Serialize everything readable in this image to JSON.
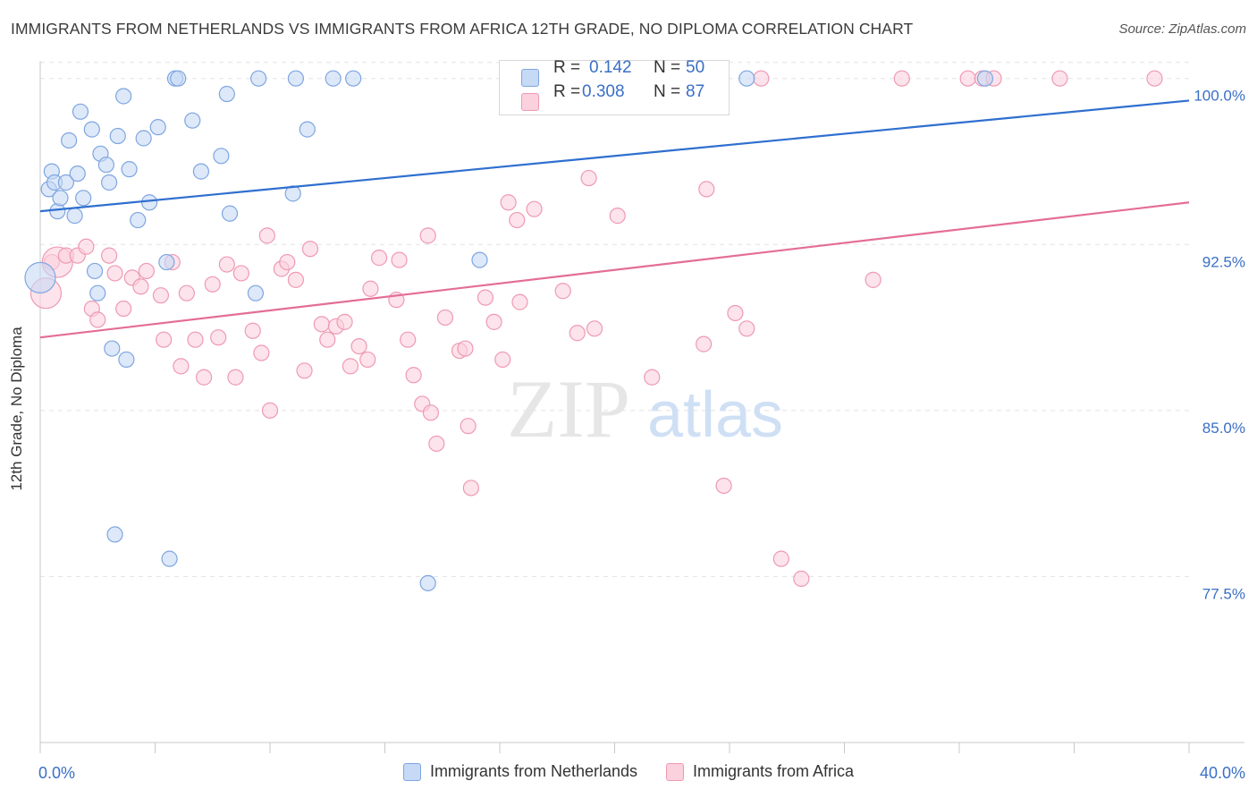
{
  "title": "IMMIGRANTS FROM NETHERLANDS VS IMMIGRANTS FROM AFRICA 12TH GRADE, NO DIPLOMA CORRELATION CHART",
  "source": "Source: ZipAtlas.com",
  "watermark": {
    "zip": "ZIP",
    "atlas": "atlas"
  },
  "stats": {
    "r_label": "R =",
    "n_label": "N =",
    "blue": {
      "r": "0.142",
      "n": "50"
    },
    "pink": {
      "r": "0.308",
      "n": "87"
    }
  },
  "colors": {
    "blue_fill": "#c6d9f5",
    "blue_stroke": "#7ea6e0",
    "blue_line": "#2f6fcf",
    "pink_fill": "#fbd1dd",
    "pink_stroke": "#ee9ab3",
    "pink_line": "#e46d96",
    "tick_label": "#3a6fc6",
    "grid": "#e3e3e3"
  },
  "chart_data": {
    "type": "scatter",
    "title": "IMMIGRANTS FROM NETHERLANDS VS IMMIGRANTS FROM AFRICA 12TH GRADE, NO DIPLOMA CORRELATION CHART",
    "xlabel": "",
    "ylabel": "12th Grade, No Diploma",
    "xlim": [
      0,
      40
    ],
    "ylim": [
      70.0,
      101.2
    ],
    "x_tick_labels": [
      {
        "value": 0,
        "label": "0.0%"
      },
      {
        "value": 40,
        "label": "40.0%"
      }
    ],
    "y_tick_labels": [
      {
        "value": 100.0,
        "label": "100.0%"
      },
      {
        "value": 92.5,
        "label": "92.5%"
      },
      {
        "value": 85.0,
        "label": "85.0%"
      },
      {
        "value": 77.5,
        "label": "77.5%"
      }
    ],
    "grid": "horizontal dashed",
    "legend": "bottom-center",
    "series": [
      {
        "name": "Immigrants from Netherlands",
        "color": "#7ea6e0",
        "trend": {
          "x": [
            0,
            40
          ],
          "y": [
            94.0,
            99.0
          ]
        },
        "points": [
          [
            0.0,
            91.0
          ],
          [
            0.3,
            95.0
          ],
          [
            0.4,
            95.8
          ],
          [
            0.5,
            95.3
          ],
          [
            0.6,
            94.0
          ],
          [
            0.7,
            94.6
          ],
          [
            0.9,
            95.3
          ],
          [
            1.0,
            97.2
          ],
          [
            1.2,
            93.8
          ],
          [
            1.3,
            95.7
          ],
          [
            1.4,
            98.5
          ],
          [
            1.5,
            94.6
          ],
          [
            1.8,
            97.7
          ],
          [
            1.9,
            91.3
          ],
          [
            2.0,
            90.3
          ],
          [
            2.1,
            96.6
          ],
          [
            2.3,
            96.1
          ],
          [
            2.4,
            95.3
          ],
          [
            2.5,
            87.8
          ],
          [
            2.6,
            79.4
          ],
          [
            2.7,
            97.4
          ],
          [
            2.9,
            99.2
          ],
          [
            3.0,
            87.3
          ],
          [
            3.1,
            95.9
          ],
          [
            3.4,
            93.6
          ],
          [
            3.6,
            97.3
          ],
          [
            3.8,
            94.4
          ],
          [
            4.1,
            97.8
          ],
          [
            4.4,
            91.7
          ],
          [
            4.5,
            78.3
          ],
          [
            4.7,
            100.0
          ],
          [
            4.8,
            100.0
          ],
          [
            5.3,
            98.1
          ],
          [
            5.6,
            95.8
          ],
          [
            6.3,
            96.5
          ],
          [
            6.5,
            99.3
          ],
          [
            6.6,
            93.9
          ],
          [
            7.5,
            90.3
          ],
          [
            7.6,
            100.0
          ],
          [
            8.8,
            94.8
          ],
          [
            8.9,
            100.0
          ],
          [
            9.3,
            97.7
          ],
          [
            10.2,
            100.0
          ],
          [
            10.9,
            100.0
          ],
          [
            13.5,
            77.2
          ],
          [
            15.3,
            91.8
          ],
          [
            24.6,
            100.0
          ],
          [
            32.9,
            100.0
          ]
        ]
      },
      {
        "name": "Immigrants from Africa",
        "color": "#ee9ab3",
        "trend": {
          "x": [
            0,
            40
          ],
          "y": [
            88.3,
            94.4
          ]
        },
        "points": [
          [
            0.2,
            90.3
          ],
          [
            0.4,
            91.7
          ],
          [
            0.6,
            91.7
          ],
          [
            0.9,
            92.0
          ],
          [
            1.3,
            92.0
          ],
          [
            1.6,
            92.4
          ],
          [
            1.8,
            89.6
          ],
          [
            2.0,
            89.1
          ],
          [
            2.4,
            92.0
          ],
          [
            2.6,
            91.2
          ],
          [
            2.9,
            89.6
          ],
          [
            3.2,
            91.0
          ],
          [
            3.5,
            90.6
          ],
          [
            3.7,
            91.3
          ],
          [
            4.2,
            90.2
          ],
          [
            4.3,
            88.2
          ],
          [
            4.6,
            91.7
          ],
          [
            4.9,
            87.0
          ],
          [
            5.1,
            90.3
          ],
          [
            5.4,
            88.2
          ],
          [
            5.7,
            86.5
          ],
          [
            6.0,
            90.7
          ],
          [
            6.2,
            88.3
          ],
          [
            6.5,
            91.6
          ],
          [
            6.8,
            86.5
          ],
          [
            7.0,
            91.2
          ],
          [
            7.4,
            88.6
          ],
          [
            7.7,
            87.6
          ],
          [
            7.9,
            92.9
          ],
          [
            8.0,
            85.0
          ],
          [
            8.4,
            91.4
          ],
          [
            8.6,
            91.7
          ],
          [
            8.9,
            90.9
          ],
          [
            9.2,
            86.8
          ],
          [
            9.4,
            92.3
          ],
          [
            9.8,
            88.9
          ],
          [
            10.0,
            88.2
          ],
          [
            10.3,
            88.8
          ],
          [
            10.6,
            89.0
          ],
          [
            10.8,
            87.0
          ],
          [
            11.1,
            87.9
          ],
          [
            11.4,
            87.3
          ],
          [
            11.5,
            90.5
          ],
          [
            11.8,
            91.9
          ],
          [
            12.4,
            90.0
          ],
          [
            12.5,
            91.8
          ],
          [
            12.8,
            88.2
          ],
          [
            13.0,
            86.6
          ],
          [
            13.3,
            85.3
          ],
          [
            13.5,
            92.9
          ],
          [
            13.6,
            84.9
          ],
          [
            13.8,
            83.5
          ],
          [
            14.1,
            89.2
          ],
          [
            14.6,
            87.7
          ],
          [
            14.8,
            87.8
          ],
          [
            14.9,
            84.3
          ],
          [
            15.0,
            81.5
          ],
          [
            15.5,
            90.1
          ],
          [
            15.8,
            89.0
          ],
          [
            16.1,
            87.3
          ],
          [
            16.3,
            94.4
          ],
          [
            16.6,
            93.6
          ],
          [
            16.7,
            89.9
          ],
          [
            17.2,
            94.1
          ],
          [
            18.2,
            90.4
          ],
          [
            18.7,
            88.5
          ],
          [
            19.1,
            95.5
          ],
          [
            19.3,
            88.7
          ],
          [
            20.1,
            93.8
          ],
          [
            21.3,
            86.5
          ],
          [
            22.0,
            100.0
          ],
          [
            23.1,
            88.0
          ],
          [
            23.2,
            95.0
          ],
          [
            23.8,
            81.6
          ],
          [
            24.2,
            89.4
          ],
          [
            24.6,
            88.7
          ],
          [
            25.1,
            100.0
          ],
          [
            25.8,
            78.3
          ],
          [
            26.5,
            77.4
          ],
          [
            29.0,
            90.9
          ],
          [
            30.0,
            100.0
          ],
          [
            32.3,
            100.0
          ],
          [
            32.8,
            100.0
          ],
          [
            33.2,
            100.0
          ],
          [
            35.5,
            100.0
          ],
          [
            38.8,
            100.0
          ]
        ]
      }
    ]
  }
}
